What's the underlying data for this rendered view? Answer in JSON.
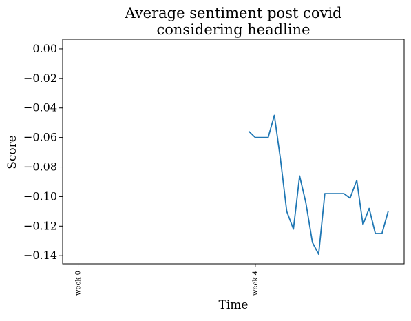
{
  "chart_data": {
    "type": "line",
    "title_line1": "Average sentiment post covid",
    "title_line2": "considering headline",
    "xlabel": "Time",
    "ylabel": "Score",
    "x_tick_labels": [
      "week 0",
      "week 4"
    ],
    "x_tick_positions_week": [
      0,
      4
    ],
    "y_ticks": [
      0.0,
      -0.02,
      -0.04,
      -0.06,
      -0.08,
      -0.1,
      -0.12,
      -0.14
    ],
    "y_tick_labels": [
      "0.00",
      "−0.02",
      "−0.04",
      "−0.06",
      "−0.08",
      "−0.10",
      "−0.12",
      "−0.14"
    ],
    "xlim": [
      -0.35,
      7.36
    ],
    "ylim": [
      -0.1455,
      0.0065
    ],
    "grid": false,
    "series": [
      {
        "color": "#1f77b4",
        "x": [
          3.86,
          4.0,
          4.14,
          4.29,
          4.43,
          4.57,
          4.71,
          4.86,
          5.0,
          5.14,
          5.29,
          5.43,
          5.57,
          5.71,
          5.86,
          6.0,
          6.14,
          6.29,
          6.43,
          6.57,
          6.71,
          6.86,
          7.0
        ],
        "y": [
          -0.056,
          -0.06,
          -0.06,
          -0.06,
          -0.045,
          -0.075,
          -0.11,
          -0.122,
          -0.086,
          -0.104,
          -0.131,
          -0.139,
          -0.098,
          -0.098,
          -0.098,
          -0.098,
          -0.101,
          -0.089,
          -0.119,
          -0.108,
          -0.125,
          -0.125,
          -0.11
        ]
      }
    ]
  }
}
